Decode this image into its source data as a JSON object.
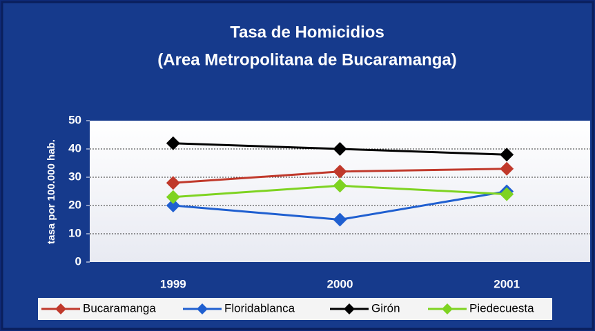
{
  "chart_data": {
    "type": "line",
    "title": [
      "Tasa de Homicidios",
      "(Area Metropolitana de Bucaramanga)"
    ],
    "y_label": "tasa por 100.000 hab.",
    "categories": [
      "1999",
      "2000",
      "2001"
    ],
    "series": [
      {
        "name": "Bucaramanga",
        "color": "#c0392b",
        "values": [
          28,
          32,
          33
        ]
      },
      {
        "name": "Floridablanca",
        "color": "#1f5fd0",
        "values": [
          20,
          15,
          25
        ]
      },
      {
        "name": "Girón",
        "color": "#000000",
        "values": [
          42,
          40,
          38
        ]
      },
      {
        "name": "Piedecuesta",
        "color": "#7ed321",
        "values": [
          23,
          27,
          24
        ]
      }
    ],
    "ylim": [
      0,
      50
    ],
    "yticks": [
      0,
      10,
      20,
      30,
      40,
      50
    ],
    "grid": true
  }
}
